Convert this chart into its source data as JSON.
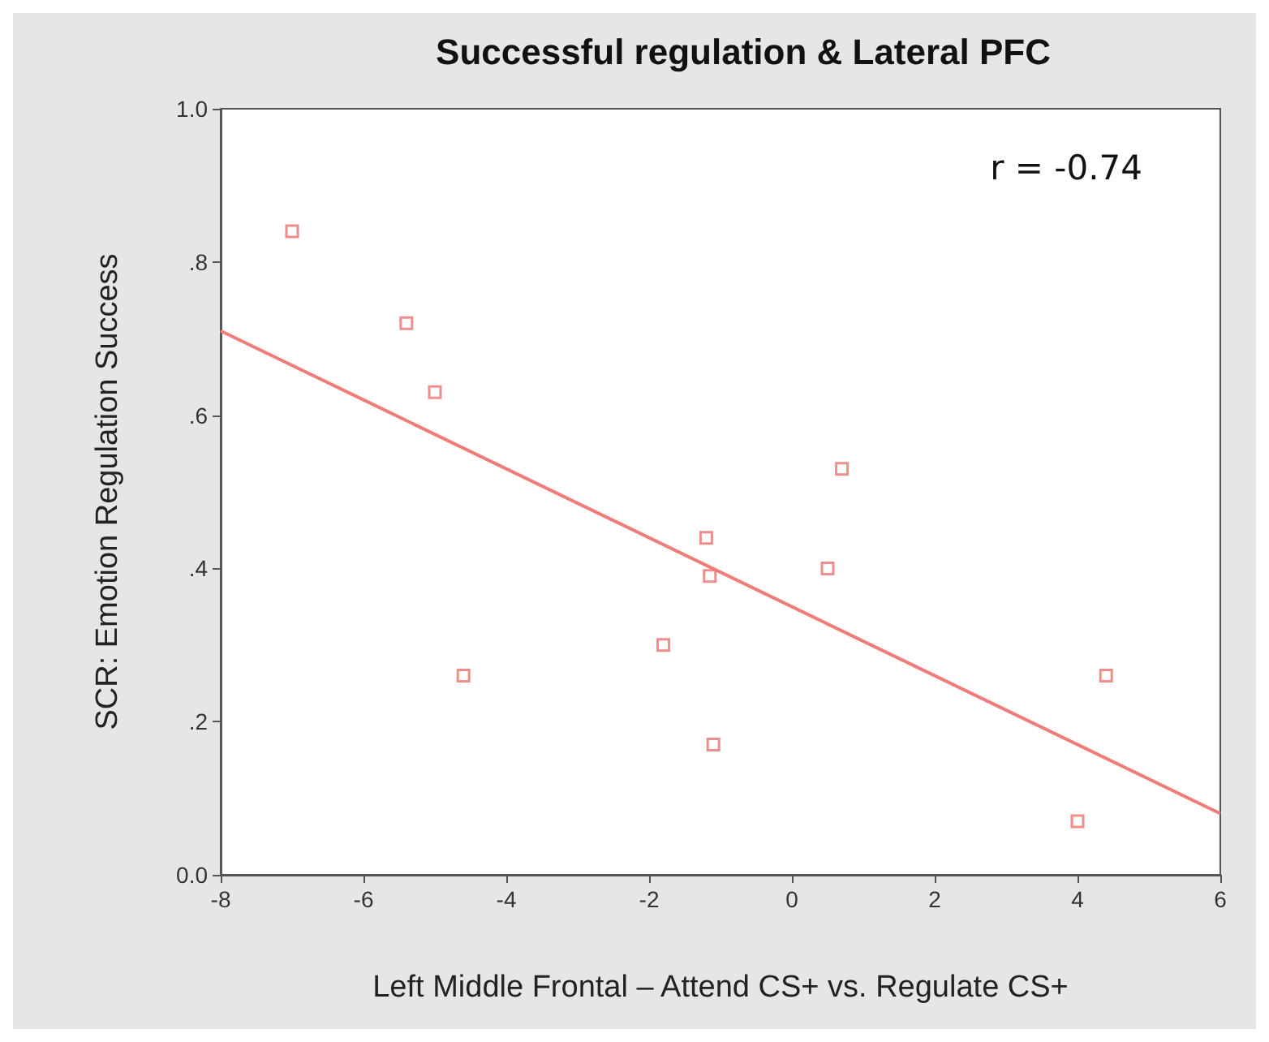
{
  "chart_data": {
    "type": "scatter",
    "title": "Successful regulation & Lateral PFC",
    "xlabel": "Left Middle Frontal – Attend CS+ vs. Regulate CS+",
    "ylabel": "SCR: Emotion Regulation Success",
    "annotations": [
      "r = -0.74"
    ],
    "series": [
      {
        "color": "#e8706f",
        "marker": "square",
        "x": [
          -7.0,
          -5.4,
          -5.0,
          -4.6,
          -1.8,
          -1.2,
          -1.15,
          -1.1,
          0.5,
          0.7,
          4.0,
          4.4
        ],
        "values": [
          0.84,
          0.72,
          0.63,
          0.26,
          0.3,
          0.44,
          0.39,
          0.17,
          0.4,
          0.53,
          0.07,
          0.26
        ]
      },
      {
        "type": "line",
        "color": "#f07b78",
        "marker": "none",
        "x": [
          -8,
          6
        ],
        "values": [
          0.71,
          0.08
        ]
      }
    ],
    "xlim": [
      -8,
      6
    ],
    "xticks": [
      -8,
      -6,
      -4,
      -2,
      0,
      2,
      4,
      6
    ],
    "ylim": [
      0,
      1
    ],
    "yticks": [
      {
        "value": 0,
        "label": "0.0"
      },
      {
        "value": 0.2,
        "label": ".2"
      },
      {
        "value": 0.4,
        "label": ".4"
      },
      {
        "value": 0.6,
        "label": ".6"
      },
      {
        "value": 0.8,
        "label": ".8"
      },
      {
        "value": 1,
        "label": "1.0"
      }
    ],
    "grid": false
  }
}
